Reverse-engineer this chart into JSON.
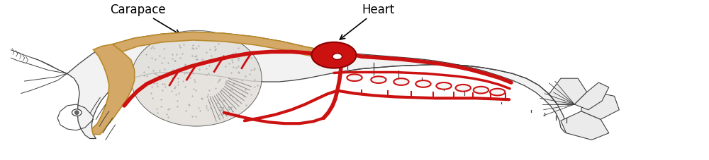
{
  "background_color": "#ffffff",
  "carapace_color": "#D4A967",
  "carapace_edge_color": "#B8892A",
  "heart_color": "#CC1111",
  "heart_edge_color": "#8B0000",
  "vessel_color": "#CC1111",
  "outline_color": "#404040",
  "body_fill": "#f2f2f2",
  "label_carapace": "Carapace",
  "label_heart": "Heart",
  "figsize": [
    10.0,
    2.28
  ],
  "dpi": 100
}
